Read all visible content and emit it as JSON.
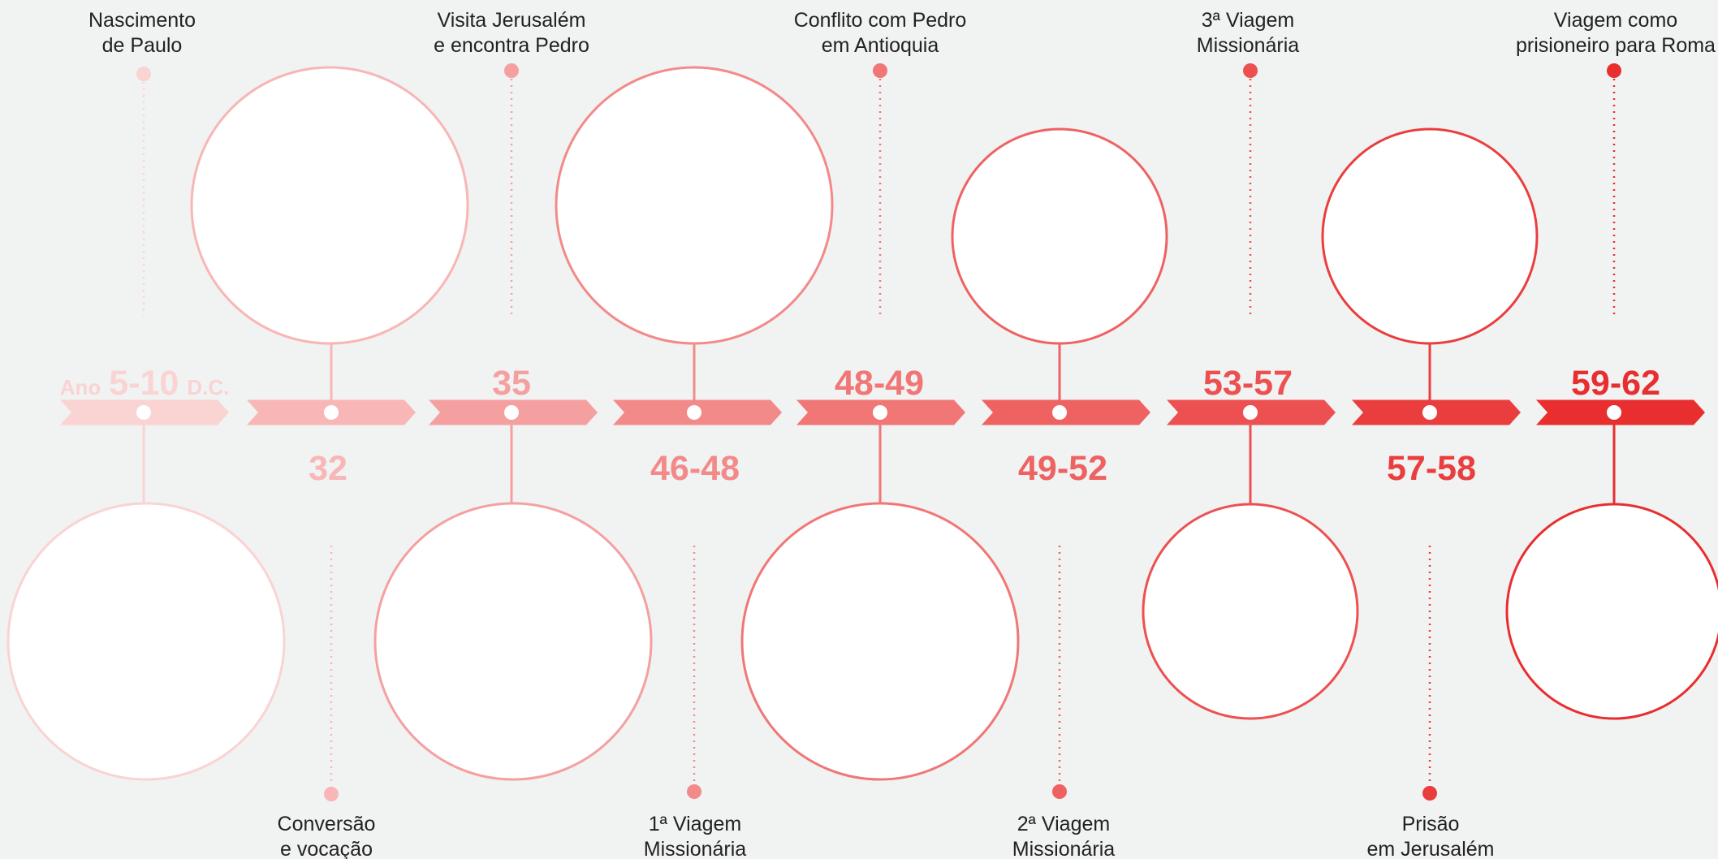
{
  "timeline": {
    "year_prefix": "Ano",
    "year_suffix": "D.C.",
    "events": [
      {
        "year": "5-10",
        "label_line1": "Nascimento",
        "label_line2": "de Paulo",
        "color": "#fad3d3"
      },
      {
        "year": "32",
        "label_line1": "Conversão",
        "label_line2": "e vocação",
        "color": "#f8b6b6"
      },
      {
        "year": "35",
        "label_line1": "Visita Jerusalém",
        "label_line2": "e encontra Pedro",
        "color": "#f5a0a0"
      },
      {
        "year": "46-48",
        "label_line1": "1ª Viagem",
        "label_line2": "Missionária",
        "color": "#f38a8a"
      },
      {
        "year": "48-49",
        "label_line1": "Conflito com Pedro",
        "label_line2": "em Antioquia",
        "color": "#f17676"
      },
      {
        "year": "49-52",
        "label_line1": "2ª Viagem",
        "label_line2": "Missionária",
        "color": "#ef6262"
      },
      {
        "year": "53-57",
        "label_line1": "3ª Viagem",
        "label_line2": "Missionária",
        "color": "#ed5050"
      },
      {
        "year": "57-58",
        "label_line1": "Prisão",
        "label_line2": "em Jerusalém",
        "color": "#ea3e3e"
      },
      {
        "year": "59-62",
        "label_line1": "Viagem como",
        "label_line2": "prisioneiro para Roma",
        "color": "#e82e2e"
      }
    ]
  }
}
